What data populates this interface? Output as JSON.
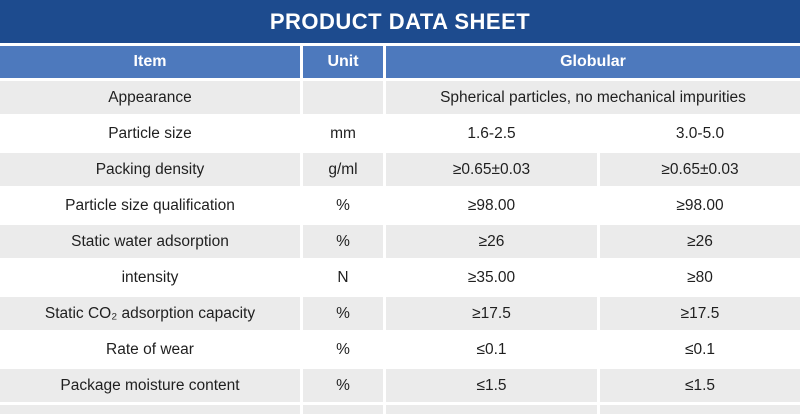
{
  "title": "PRODUCT DATA SHEET",
  "colors": {
    "title_bar": "#1d4b8e",
    "header_bg": "#4d79bd",
    "row_alt": "#ebebeb",
    "row_bg": "#ffffff",
    "body_text": "#1f1f1f",
    "header_text": "#ffffff"
  },
  "table": {
    "headers": {
      "item": "Item",
      "unit": "Unit",
      "group": "Globular"
    },
    "rows": [
      {
        "item": "Appearance",
        "unit": "",
        "span": "Spherical particles, no mechanical impurities"
      },
      {
        "item": "Particle size",
        "unit": "mm",
        "v1": "1.6-2.5",
        "v2": "3.0-5.0"
      },
      {
        "item": "Packing density",
        "unit": "g/ml",
        "v1": "≥0.65±0.03",
        "v2": "≥0.65±0.03"
      },
      {
        "item": "Particle size qualification",
        "unit": "%",
        "v1": "≥98.00",
        "v2": "≥98.00"
      },
      {
        "item": "Static water adsorption",
        "unit": "%",
        "v1": "≥26",
        "v2": "≥26"
      },
      {
        "item": "intensity",
        "unit": "N",
        "v1": "≥35.00",
        "v2": "≥80"
      },
      {
        "item": "Static CO₂ adsorption capacity",
        "unit": "%",
        "v1": "≥17.5",
        "v2": "≥17.5"
      },
      {
        "item": "Rate of wear",
        "unit": "%",
        "v1": "≤0.1",
        "v2": "≤0.1"
      },
      {
        "item": "Package moisture content",
        "unit": "%",
        "v1": "≤1.5",
        "v2": "≤1.5"
      }
    ]
  }
}
